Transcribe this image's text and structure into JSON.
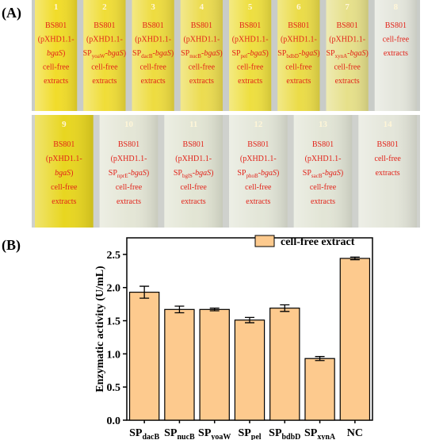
{
  "panel_labels": [
    "(A)",
    "(B)"
  ],
  "photo": {
    "rows": [
      [
        {
          "number": "1",
          "color": "#f1dc2a",
          "lines": [
            [
              "BS801"
            ],
            [
              "(pXHD1.1-"
            ],
            [
              {
                "text": "bgaS",
                "style": "italic"
              },
              ")"
            ],
            [
              "cell-free"
            ],
            [
              "extracts"
            ]
          ]
        },
        {
          "number": "2",
          "color": "#f0dd38",
          "lines": [
            [
              "BS801"
            ],
            [
              "(pXHD1.1-"
            ],
            [
              "SP",
              {
                "text": "yoaW",
                "style": "sub"
              },
              "-",
              {
                "text": "bgaS",
                "style": "italic"
              },
              ")"
            ],
            [
              "cell-free"
            ],
            [
              "extracts"
            ]
          ]
        },
        {
          "number": "3",
          "color": "#eedc40",
          "lines": [
            [
              "BS801"
            ],
            [
              "(pXHD1.1-"
            ],
            [
              "SP",
              {
                "text": "dacB",
                "style": "sub"
              },
              "-",
              {
                "text": "bgaS",
                "style": "italic"
              },
              ")"
            ],
            [
              "cell-free"
            ],
            [
              "extracts"
            ]
          ]
        },
        {
          "number": "4",
          "color": "#ecdc50",
          "lines": [
            [
              "BS801"
            ],
            [
              "(pXHD1.1-"
            ],
            [
              "SP",
              {
                "text": "nucB",
                "style": "sub"
              },
              "-",
              {
                "text": "bgaS",
                "style": "italic"
              },
              ")"
            ],
            [
              "cell-free"
            ],
            [
              "extracts"
            ]
          ]
        },
        {
          "number": "5",
          "color": "#eedf40",
          "lines": [
            [
              "BS801"
            ],
            [
              "(pXHD1.1-"
            ],
            [
              "SP",
              {
                "text": "pel",
                "style": "sub"
              },
              "-",
              {
                "text": "bgaS",
                "style": "italic"
              },
              ")"
            ],
            [
              "cell-free"
            ],
            [
              "extracts"
            ]
          ]
        },
        {
          "number": "6",
          "color": "#ebdc48",
          "lines": [
            [
              "BS801"
            ],
            [
              "(pXHD1.1-"
            ],
            [
              "SP",
              {
                "text": "bdbD",
                "style": "sub"
              },
              "-",
              {
                "text": "bgaS",
                "style": "italic"
              },
              ")"
            ],
            [
              "cell-free"
            ],
            [
              "extracts"
            ]
          ]
        },
        {
          "number": "7",
          "color": "#e6e08a",
          "lines": [
            [
              "BS801"
            ],
            [
              "(pXHD1.1-"
            ],
            [
              "SP",
              {
                "text": "xynA",
                "style": "sub"
              },
              "-",
              {
                "text": "bgaS",
                "style": "italic"
              },
              ")"
            ],
            [
              "cell-free"
            ],
            [
              "extracts"
            ]
          ]
        },
        {
          "number": "8",
          "color": "#e4e6dc",
          "lines": [
            [
              "BS801"
            ],
            [
              "cell-free"
            ],
            [
              "extracts"
            ]
          ]
        }
      ],
      [
        {
          "number": "9",
          "color": "#e8d620",
          "lines": [
            [
              "BS801"
            ],
            [
              "(pXHD1.1-"
            ],
            [
              {
                "text": "bgaS",
                "style": "italic"
              },
              ")"
            ],
            [
              "cell-free"
            ],
            [
              "extracts"
            ]
          ]
        },
        {
          "number": "10",
          "color": "#e4e6d6",
          "lines": [
            [
              "BS801"
            ],
            [
              "(pXHD1.1-"
            ],
            [
              "SP",
              {
                "text": "nprE",
                "style": "sub"
              },
              "-",
              {
                "text": "bgaS",
                "style": "italic"
              },
              ")"
            ],
            [
              "cell-free"
            ],
            [
              "extracts"
            ]
          ]
        },
        {
          "number": "11",
          "color": "#e2e5d4",
          "lines": [
            [
              "BS801"
            ],
            [
              "(pXHD1.1-"
            ],
            [
              "SP",
              {
                "text": "bglS",
                "style": "sub"
              },
              "-",
              {
                "text": "bgaS",
                "style": "italic"
              },
              ")"
            ],
            [
              "cell-free"
            ],
            [
              "extracts"
            ]
          ]
        },
        {
          "number": "12",
          "color": "#e3e6d8",
          "lines": [
            [
              "BS801"
            ],
            [
              "(pXHD1.1-"
            ],
            [
              "SP",
              {
                "text": "phoB",
                "style": "sub"
              },
              "-",
              {
                "text": "bgaS",
                "style": "italic"
              },
              ")"
            ],
            [
              "cell-free"
            ],
            [
              "extracts"
            ]
          ]
        },
        {
          "number": "13",
          "color": "#e2e5d6",
          "lines": [
            [
              "BS801"
            ],
            [
              "(pXHD1.1-"
            ],
            [
              "SP",
              {
                "text": "sacB",
                "style": "sub"
              },
              "-",
              {
                "text": "bgaS",
                "style": "italic"
              },
              ")"
            ],
            [
              "cell-free"
            ],
            [
              "extracts"
            ]
          ]
        },
        {
          "number": "14",
          "color": "#e4e6da",
          "lines": [
            [
              "BS801"
            ],
            [
              "cell-free"
            ],
            [
              "extracts"
            ]
          ]
        }
      ]
    ]
  },
  "chart_data": {
    "type": "bar",
    "y_label": "Enzymatic activity (U/mL)",
    "categories": [
      {
        "base": "SP",
        "sub": "dacB"
      },
      {
        "base": "SP",
        "sub": "nucB"
      },
      {
        "base": "SP",
        "sub": "yoaW"
      },
      {
        "base": "SP",
        "sub": "pel"
      },
      {
        "base": "SP",
        "sub": "bdbD"
      },
      {
        "base": "SP",
        "sub": "xynA"
      },
      {
        "base": "NC"
      }
    ],
    "series": [
      {
        "name": "cell-free extract",
        "color": "#fdca8e",
        "values": [
          1.93,
          1.67,
          1.67,
          1.51,
          1.69,
          0.93,
          2.44
        ],
        "errors": [
          0.09,
          0.05,
          0.02,
          0.04,
          0.05,
          0.03,
          0.02
        ]
      }
    ],
    "ylim": [
      0,
      2.75
    ],
    "yticks": [
      {
        "value": 0,
        "label": "0.0"
      },
      {
        "value": 0.5,
        "label": "0.5"
      },
      {
        "value": 1,
        "label": "1.0"
      },
      {
        "value": 1.5,
        "label": "1.5"
      },
      {
        "value": 2,
        "label": "2.0"
      },
      {
        "value": 2.5,
        "label": "2.5"
      }
    ],
    "legend": "top-right"
  }
}
